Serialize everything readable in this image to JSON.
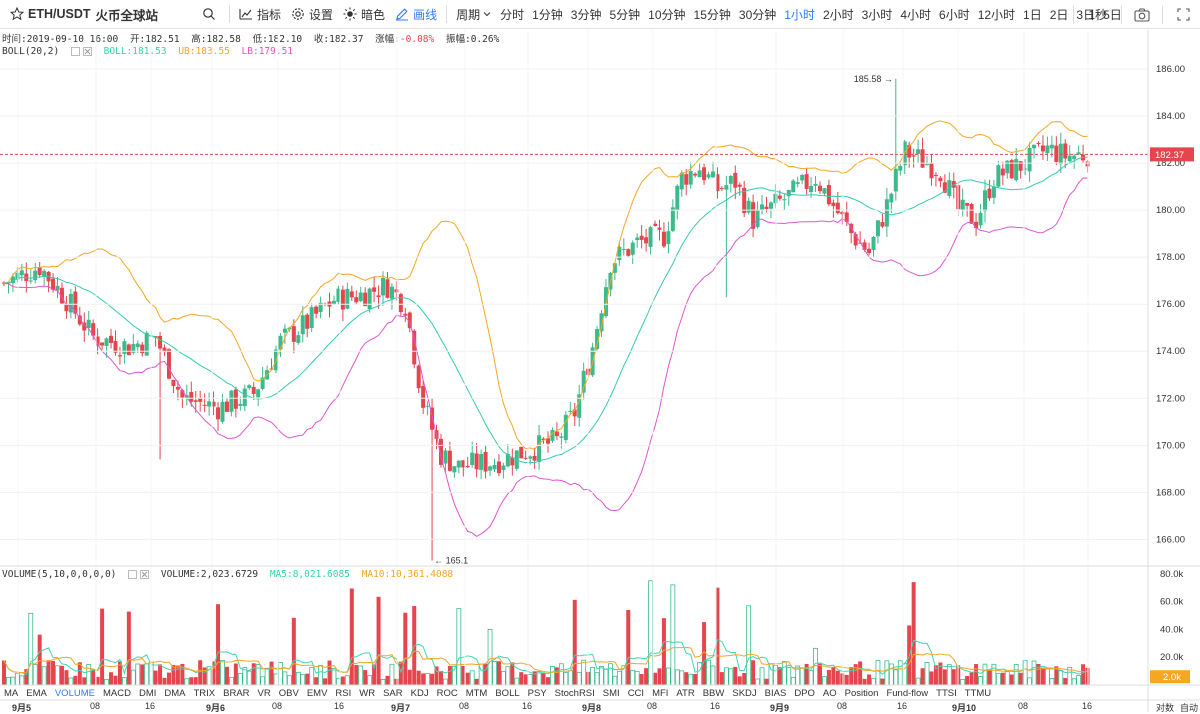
{
  "toolbar": {
    "symbol": "ETH/USDT",
    "exchange": "火币全球站",
    "indicators_label": "指标",
    "settings_label": "设置",
    "theme_label": "暗色",
    "draw_label": "画线",
    "period_label": "周期",
    "periods": [
      "分时",
      "1分钟",
      "3分钟",
      "5分钟",
      "10分钟",
      "15分钟",
      "30分钟",
      "1小时",
      "2小时",
      "3小时",
      "4小时",
      "6小时",
      "12小时",
      "1日",
      "2日",
      "3日",
      "5日"
    ],
    "active_period": "1小时",
    "countdown": "1秒"
  },
  "ohlc": {
    "time_label": "时间:",
    "time": "2019-09-10 16:00",
    "open_label": "开:",
    "open": "182.51",
    "high_label": "高:",
    "high": "182.58",
    "low_label": "低:",
    "low": "182.10",
    "close_label": "收:",
    "close": "182.37",
    "change_label": "涨幅:",
    "change": "-0.08%",
    "amp_label": "振幅:",
    "amp": "0.26%"
  },
  "boll": {
    "label": "BOLL(20,2)",
    "mid": "BOLL:181.53",
    "ub": "UB:183.55",
    "lb": "LB:179.51"
  },
  "volume": {
    "label": "VOLUME(5,10,0,0,0,0)",
    "value": "VOLUME:2,023.6729",
    "ma5": "MA5:8,021.6085",
    "ma10": "MA10:10,361.4088"
  },
  "price_axis": {
    "ticks": [
      "186.00",
      "184.00",
      "182.00",
      "180.00",
      "178.00",
      "176.00",
      "174.00",
      "172.00",
      "170.00",
      "168.00",
      "166.00"
    ],
    "last": "182.37"
  },
  "volume_axis": {
    "ticks": [
      "80.0k",
      "60.0k",
      "40.0k",
      "20.0k"
    ],
    "last": "2.0k"
  },
  "annotations": {
    "high": "185.58",
    "low": "165.1"
  },
  "indicators": [
    "MA",
    "EMA",
    "VOLUME",
    "MACD",
    "DMI",
    "DMA",
    "TRIX",
    "BRAR",
    "VR",
    "OBV",
    "EMV",
    "RSI",
    "WR",
    "SAR",
    "KDJ",
    "ROC",
    "MTM",
    "BOLL",
    "PSY",
    "StochRSI",
    "SMI",
    "CCI",
    "MFI",
    "ATR",
    "BBW",
    "SKDJ",
    "BIAS",
    "DPO",
    "AO",
    "Position",
    "Fund-flow",
    "TTSI",
    "TTMU"
  ],
  "active_indicator": "VOLUME",
  "x_axis": [
    {
      "label": "9月5",
      "bold": true
    },
    {
      "label": "08"
    },
    {
      "label": "16"
    },
    {
      "label": "9月6",
      "bold": true
    },
    {
      "label": "08"
    },
    {
      "label": "16"
    },
    {
      "label": "9月7",
      "bold": true
    },
    {
      "label": "08"
    },
    {
      "label": "16"
    },
    {
      "label": "9月8",
      "bold": true
    },
    {
      "label": "08"
    },
    {
      "label": "16"
    },
    {
      "label": "9月9",
      "bold": true
    },
    {
      "label": "08"
    },
    {
      "label": "16"
    },
    {
      "label": "9月10",
      "bold": true
    },
    {
      "label": "08"
    },
    {
      "label": "16"
    }
  ],
  "scale_buttons": {
    "log": "对数",
    "auto": "自动"
  },
  "colors": {
    "up": "#3cba8c",
    "down": "#e5464d",
    "ub": "#f5a623",
    "mid": "#33ccb0",
    "lb": "#e055d0",
    "ma5": "#3fd6b0",
    "ma10": "#f5a623",
    "accent": "#2e7bff"
  },
  "chart_data": {
    "type": "candlestick",
    "price_range": [
      165.0,
      187.0
    ],
    "volume_range": [
      0,
      80000
    ],
    "candles": []
  }
}
